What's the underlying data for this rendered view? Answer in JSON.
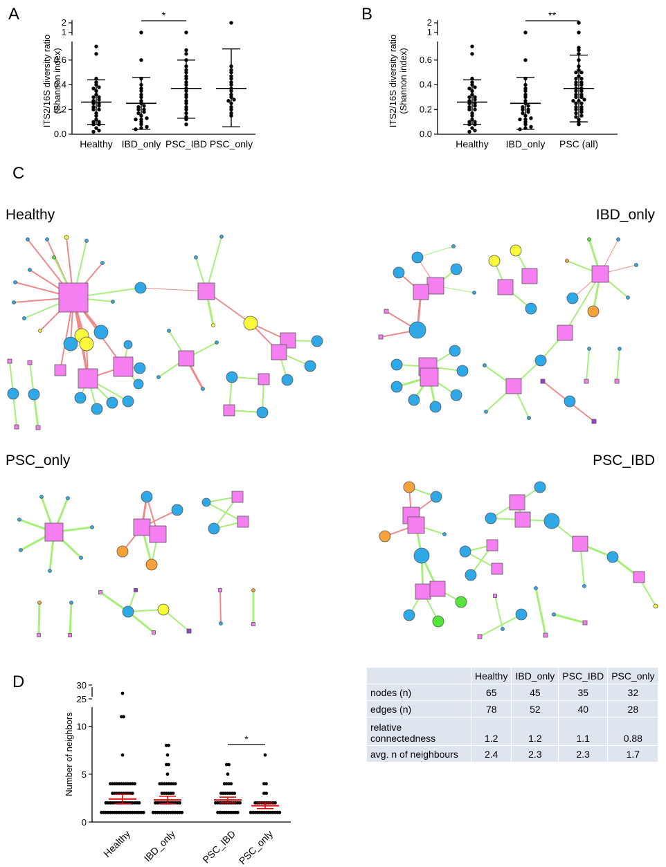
{
  "panel_labels": {
    "A": "A",
    "B": "B",
    "C": "C",
    "D": "D"
  },
  "colors": {
    "node_blue": "#2fa8e8",
    "node_pink": "#f57ef0",
    "node_yellow": "#fafa3c",
    "node_orange": "#f5a23a",
    "node_green": "#55e63a",
    "node_purple": "#9a3fd0",
    "edge_green": "#a6f07a",
    "edge_red": "#f08a8a",
    "mean_red": "#e60000",
    "table_fill": "#dfe5ee"
  },
  "chart_data": [
    {
      "id": "A",
      "type": "scatter",
      "ylabel": "ITS2/16S diversity ratio\n(Shannon index)",
      "categories": [
        "Healthy",
        "IBD_only",
        "PSC_IBD",
        "PSC_only"
      ],
      "yticks_lower": [
        "0.0",
        "0.2",
        "0.4",
        "0.6"
      ],
      "yticks_upper": [
        "1",
        "2"
      ],
      "ylim": [
        0,
        0.75
      ],
      "axis_break": true,
      "significance": [
        {
          "from": "IBD_only",
          "to": "PSC_IBD",
          "label": "*"
        }
      ],
      "series": [
        {
          "category": "Healthy",
          "values": [
            0.02,
            0.03,
            0.05,
            0.08,
            0.08,
            0.1,
            0.1,
            0.12,
            0.15,
            0.17,
            0.2,
            0.2,
            0.22,
            0.23,
            0.25,
            0.25,
            0.27,
            0.28,
            0.3,
            0.3,
            0.32,
            0.35,
            0.37,
            0.38,
            0.4,
            0.42,
            0.45,
            0.65,
            0.71
          ],
          "mean": 0.26,
          "sd_low": 0.08,
          "sd_high": 0.44
        },
        {
          "category": "IBD_only",
          "values": [
            0.04,
            0.05,
            0.06,
            0.08,
            0.1,
            0.12,
            0.12,
            0.13,
            0.15,
            0.17,
            0.18,
            0.2,
            0.2,
            0.22,
            0.23,
            0.25,
            0.27,
            0.3,
            0.32,
            0.35,
            0.37,
            0.4,
            0.45,
            0.6,
            1
          ],
          "mean": 0.25,
          "sd_low": 0.04,
          "sd_high": 0.46
        },
        {
          "category": "PSC_IBD",
          "values": [
            0.08,
            0.12,
            0.14,
            0.17,
            0.2,
            0.22,
            0.25,
            0.27,
            0.3,
            0.32,
            0.35,
            0.37,
            0.4,
            0.42,
            0.45,
            0.47,
            0.5,
            0.52,
            0.55,
            0.6,
            0.65,
            0.68,
            1
          ],
          "mean": 0.37,
          "sd_low": 0.13,
          "sd_high": 0.6
        },
        {
          "category": "PSC_only",
          "values": [
            0.15,
            0.17,
            0.2,
            0.22,
            0.25,
            0.27,
            0.28,
            0.3,
            0.32,
            0.35,
            0.37,
            0.4,
            0.42,
            0.45,
            0.47,
            0.5,
            0.52,
            0.55,
            1.8
          ],
          "mean": 0.37,
          "sd_low": 0.06,
          "sd_high": 0.69
        }
      ]
    },
    {
      "id": "B",
      "type": "scatter",
      "ylabel": "ITS2/16S diversity ratio\n(Shannon index)",
      "categories": [
        "Healthy",
        "IBD_only",
        "PSC (all)"
      ],
      "yticks_lower": [
        "0.0",
        "0.2",
        "0.4",
        "0.6"
      ],
      "yticks_upper": [
        "1",
        "2"
      ],
      "ylim": [
        0,
        0.75
      ],
      "axis_break": true,
      "significance": [
        {
          "from": "IBD_only",
          "to": "PSC (all)",
          "label": "**"
        }
      ],
      "series": [
        {
          "category": "Healthy",
          "values": [
            0.02,
            0.03,
            0.05,
            0.08,
            0.08,
            0.1,
            0.1,
            0.12,
            0.15,
            0.17,
            0.2,
            0.2,
            0.22,
            0.23,
            0.25,
            0.25,
            0.27,
            0.28,
            0.3,
            0.3,
            0.32,
            0.35,
            0.37,
            0.38,
            0.4,
            0.42,
            0.45,
            0.65,
            0.71
          ],
          "mean": 0.26,
          "sd_low": 0.08,
          "sd_high": 0.44
        },
        {
          "category": "IBD_only",
          "values": [
            0.04,
            0.05,
            0.06,
            0.08,
            0.1,
            0.12,
            0.12,
            0.13,
            0.15,
            0.17,
            0.18,
            0.2,
            0.2,
            0.22,
            0.23,
            0.25,
            0.27,
            0.3,
            0.32,
            0.35,
            0.37,
            0.4,
            0.45,
            0.6,
            1
          ],
          "mean": 0.25,
          "sd_low": 0.04,
          "sd_high": 0.46
        },
        {
          "category": "PSC (all)",
          "values": [
            0.08,
            0.1,
            0.12,
            0.14,
            0.15,
            0.17,
            0.18,
            0.2,
            0.2,
            0.22,
            0.22,
            0.25,
            0.25,
            0.27,
            0.27,
            0.28,
            0.3,
            0.3,
            0.32,
            0.32,
            0.35,
            0.35,
            0.37,
            0.37,
            0.4,
            0.4,
            0.42,
            0.42,
            0.45,
            0.45,
            0.47,
            0.5,
            0.5,
            0.52,
            0.55,
            0.6,
            0.65,
            0.68,
            0.7,
            1,
            1.5,
            1.8
          ],
          "mean": 0.37,
          "sd_low": 0.1,
          "sd_high": 0.64
        }
      ]
    },
    {
      "id": "D",
      "type": "scatter",
      "ylabel": "Number of neighbors",
      "categories": [
        "Healthy",
        "IBD_only",
        "PSC_IBD",
        "PSC_only"
      ],
      "yticks_lower": [
        "0",
        "5",
        "10"
      ],
      "yticks_upper": [
        "25",
        "30"
      ],
      "ylim": [
        0,
        12
      ],
      "axis_break": true,
      "significance": [
        {
          "from": "PSC_IBD",
          "to": "PSC_only",
          "label": "*"
        }
      ],
      "series": [
        {
          "category": "Healthy",
          "counts": {
            "1": 20,
            "2": 16,
            "3": 10,
            "4": 12,
            "7": 1,
            "11": 2,
            "27": 1
          },
          "mean": 2.4,
          "sem_low": 1.9,
          "sem_high": 2.9
        },
        {
          "category": "IBD_only",
          "counts": {
            "1": 14,
            "2": 12,
            "3": 6,
            "4": 8,
            "5": 1,
            "6": 2,
            "7": 1,
            "8": 2
          },
          "mean": 2.3,
          "sem_low": 1.9,
          "sem_high": 2.7
        },
        {
          "category": "PSC_IBD",
          "counts": {
            "1": 10,
            "2": 12,
            "3": 7,
            "4": 4,
            "5": 1,
            "6": 2
          },
          "mean": 2.3,
          "sem_low": 2.0,
          "sem_high": 2.6
        },
        {
          "category": "PSC_only",
          "counts": {
            "1": 14,
            "2": 10,
            "3": 2,
            "4": 2,
            "7": 1
          },
          "mean": 1.7,
          "sem_low": 1.4,
          "sem_high": 2.0
        }
      ]
    }
  ],
  "networks": {
    "healthy_title": "Healthy",
    "ibd_title": "IBD_only",
    "psconly_title": "PSC_only",
    "pscibd_title": "PSC_IBD"
  },
  "table": {
    "headers": [
      "",
      "Healthy",
      "IBD_only",
      "PSC_IBD",
      "PSC_only"
    ],
    "rows": [
      {
        "label": "nodes (n)",
        "values": [
          "65",
          "45",
          "35",
          "32"
        ]
      },
      {
        "label": "edges (n)",
        "values": [
          "78",
          "52",
          "40",
          "28"
        ]
      },
      {
        "label": "relative\nconnectedness",
        "values": [
          "1.2",
          "1.2",
          "1.1",
          "0.88"
        ]
      },
      {
        "label": "avg. n of neighbours",
        "values": [
          "2.4",
          "2.3",
          "2.3",
          "1.7"
        ]
      }
    ]
  }
}
